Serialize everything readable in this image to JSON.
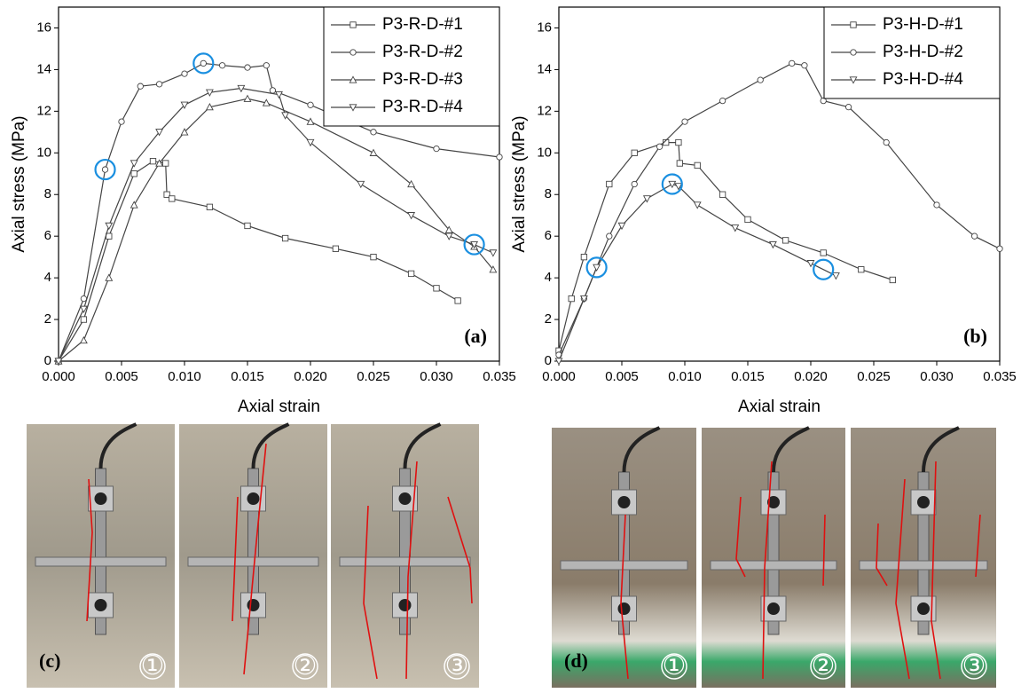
{
  "chart_data": [
    {
      "type": "line",
      "xlabel": "Axial strain",
      "ylabel": "Axial stress (MPa)",
      "panel_label": "(a)",
      "xlim": [
        0,
        0.035
      ],
      "ylim": [
        0,
        17
      ],
      "xticks": [
        {
          "value": 0,
          "label": "0.000"
        },
        {
          "value": 0.005,
          "label": "0.005"
        },
        {
          "value": 0.01,
          "label": "0.010"
        },
        {
          "value": 0.015,
          "label": "0.015"
        },
        {
          "value": 0.02,
          "label": "0.020"
        },
        {
          "value": 0.025,
          "label": "0.025"
        },
        {
          "value": 0.03,
          "label": "0.030"
        },
        {
          "value": 0.035,
          "label": "0.035"
        }
      ],
      "yticks": [
        0,
        2,
        4,
        6,
        8,
        10,
        12,
        14,
        16
      ],
      "legend": "upper right",
      "series": [
        {
          "name": "P3-R-D-#1",
          "color": "#444444",
          "marker": "square",
          "x": [
            0,
            0.002,
            0.004,
            0.006,
            0.0075,
            0.0085,
            0.0086,
            0.009,
            0.012,
            0.015,
            0.018,
            0.022,
            0.025,
            0.028,
            0.03,
            0.0317
          ],
          "values": [
            0,
            2,
            6,
            9,
            9.6,
            9.5,
            8,
            7.8,
            7.4,
            6.5,
            5.9,
            5.4,
            5,
            4.2,
            3.5,
            2.9
          ]
        },
        {
          "name": "P3-R-D-#2",
          "color": "#444444",
          "marker": "circle",
          "x": [
            0,
            0.002,
            0.0037,
            0.005,
            0.0065,
            0.008,
            0.01,
            0.0115,
            0.013,
            0.015,
            0.0165,
            0.017,
            0.02,
            0.025,
            0.03,
            0.035
          ],
          "values": [
            0,
            3,
            9.2,
            11.5,
            13.2,
            13.3,
            13.8,
            14.3,
            14.2,
            14.1,
            14.2,
            13,
            12.3,
            11,
            10.2,
            9.8
          ]
        },
        {
          "name": "P3-R-D-#3",
          "color": "#444444",
          "marker": "triangle-up",
          "x": [
            0,
            0.002,
            0.004,
            0.006,
            0.008,
            0.01,
            0.012,
            0.015,
            0.0165,
            0.02,
            0.025,
            0.028,
            0.031,
            0.033,
            0.0345
          ],
          "values": [
            0,
            1,
            4,
            7.5,
            9.5,
            11,
            12.2,
            12.6,
            12.4,
            11.5,
            10,
            8.5,
            6.3,
            5.5,
            4.4
          ]
        },
        {
          "name": "P3-R-D-#4",
          "color": "#444444",
          "marker": "triangle-down",
          "x": [
            0,
            0.002,
            0.004,
            0.006,
            0.008,
            0.01,
            0.012,
            0.0145,
            0.0175,
            0.018,
            0.02,
            0.024,
            0.028,
            0.031,
            0.033,
            0.0345
          ],
          "values": [
            0,
            2.5,
            6.5,
            9.5,
            11,
            12.3,
            12.9,
            13.1,
            12.8,
            11.8,
            10.5,
            8.5,
            7,
            6,
            5.6,
            5.2
          ]
        }
      ],
      "highlights": [
        {
          "x": 0.0037,
          "y": 9.2
        },
        {
          "x": 0.0115,
          "y": 14.3
        },
        {
          "x": 0.033,
          "y": 5.6
        }
      ]
    },
    {
      "type": "line",
      "xlabel": "Axial strain",
      "ylabel": "Axial stress (MPa)",
      "panel_label": "(b)",
      "xlim": [
        0,
        0.035
      ],
      "ylim": [
        0,
        17
      ],
      "xticks": [
        {
          "value": 0,
          "label": "0.000"
        },
        {
          "value": 0.005,
          "label": "0.005"
        },
        {
          "value": 0.01,
          "label": "0.010"
        },
        {
          "value": 0.015,
          "label": "0.015"
        },
        {
          "value": 0.02,
          "label": "0.020"
        },
        {
          "value": 0.025,
          "label": "0.025"
        },
        {
          "value": 0.03,
          "label": "0.030"
        },
        {
          "value": 0.035,
          "label": "0.035"
        }
      ],
      "yticks": [
        0,
        2,
        4,
        6,
        8,
        10,
        12,
        14,
        16
      ],
      "legend": "upper right",
      "series": [
        {
          "name": "P3-H-D-#1",
          "color": "#444444",
          "marker": "square",
          "x": [
            0,
            0.001,
            0.002,
            0.004,
            0.006,
            0.0085,
            0.0095,
            0.0096,
            0.011,
            0.013,
            0.015,
            0.018,
            0.021,
            0.024,
            0.0265
          ],
          "values": [
            0.5,
            3,
            5,
            8.5,
            10,
            10.5,
            10.5,
            9.5,
            9.4,
            8,
            6.8,
            5.8,
            5.2,
            4.4,
            3.9
          ]
        },
        {
          "name": "P3-H-D-#2",
          "color": "#444444",
          "marker": "circle",
          "x": [
            0,
            0.002,
            0.004,
            0.006,
            0.008,
            0.01,
            0.013,
            0.016,
            0.0185,
            0.0195,
            0.021,
            0.023,
            0.026,
            0.03,
            0.033,
            0.035
          ],
          "values": [
            0.3,
            3,
            6,
            8.5,
            10.3,
            11.5,
            12.5,
            13.5,
            14.3,
            14.2,
            12.5,
            12.2,
            10.5,
            7.5,
            6,
            5.4
          ]
        },
        {
          "name": "P3-H-D-#4",
          "color": "#444444",
          "marker": "triangle-down",
          "x": [
            0,
            0.002,
            0.003,
            0.005,
            0.007,
            0.009,
            0.0095,
            0.011,
            0.014,
            0.017,
            0.02,
            0.022
          ],
          "values": [
            0,
            3,
            4.5,
            6.5,
            7.8,
            8.5,
            8.4,
            7.5,
            6.4,
            5.6,
            4.7,
            4.1
          ]
        }
      ],
      "highlights": [
        {
          "x": 0.003,
          "y": 4.5
        },
        {
          "x": 0.009,
          "y": 8.5
        },
        {
          "x": 0.021,
          "y": 4.4
        }
      ]
    }
  ],
  "photos": [
    {
      "label": "(c)",
      "frames": [
        "①",
        "②",
        "③"
      ]
    },
    {
      "label": "(d)",
      "frames": [
        "①",
        "②",
        "③"
      ]
    }
  ]
}
